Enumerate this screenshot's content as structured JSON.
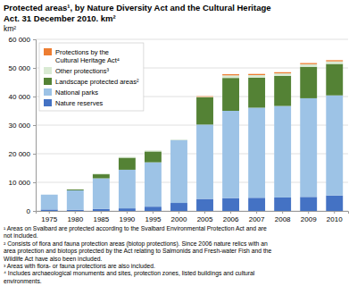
{
  "chart_data": {
    "type": "bar",
    "stacked": true,
    "title": "Protected areas¹, by Nature Diversity Act and the Cultural Heritage\nAct. 31 December 2010. km²",
    "y_label": "km²",
    "annotations": [
      "¹ Areas on Svalbard are protected according to the Svalbard Environmental Protection Act and are\nnot included.\n² Consists of flora and fauna protection areas (biotop protections). Since 2006 nature relics with an\narea protection and biotops protected by the Act relating to Salmonids and Fresh-water Fish and the\nWildlife Act have also been included.\n³ Areas with flora- or fauna protections are also included.\n⁴ Includes archaeological monuments and sites, protection zones, listed buildings and cultural\nenvironments."
    ],
    "categories": [
      "1975",
      "1980",
      "1985",
      "1990",
      "1995",
      "2000",
      "2005",
      "2006",
      "2007",
      "2008",
      "2009",
      "2010"
    ],
    "series": [
      {
        "name": "Nature reserves",
        "color": "#4472C4",
        "values": [
          500,
          400,
          700,
          900,
          1500,
          2800,
          4200,
          4500,
          4600,
          4700,
          4900,
          5400
        ]
      },
      {
        "name": "National parks",
        "color": "#9DC3E6",
        "values": [
          5200,
          6800,
          10700,
          13500,
          15500,
          22000,
          26000,
          30500,
          31500,
          32000,
          34500,
          35000
        ]
      },
      {
        "name": "Landscape protected areas²",
        "color": "#548235",
        "values": [
          0,
          300,
          1400,
          4200,
          3800,
          0,
          9500,
          11500,
          10500,
          10500,
          11000,
          11000
        ]
      },
      {
        "name": "Other protections³",
        "color": "#D9EAD3",
        "values": [
          0,
          0,
          300,
          300,
          350,
          200,
          200,
          900,
          900,
          900,
          900,
          900
        ]
      },
      {
        "name": "Protections by the\nCultural Heritage Act⁴",
        "color": "#ED7D31",
        "values": [
          0,
          0,
          0,
          0,
          0,
          0,
          200,
          400,
          400,
          400,
          400,
          400
        ]
      }
    ],
    "ylim": [
      0,
      60000
    ],
    "yticks": [
      0,
      {
        "value": 10000,
        "label": "10 000"
      },
      {
        "value": 20000,
        "label": "20 000"
      },
      {
        "value": 30000,
        "label": "30 000"
      },
      {
        "value": 40000,
        "label": "40 000"
      },
      {
        "value": 50000,
        "label": "50 000"
      },
      {
        "value": 60000,
        "label": "60 000"
      }
    ],
    "grid": true,
    "legend": "upper left"
  }
}
